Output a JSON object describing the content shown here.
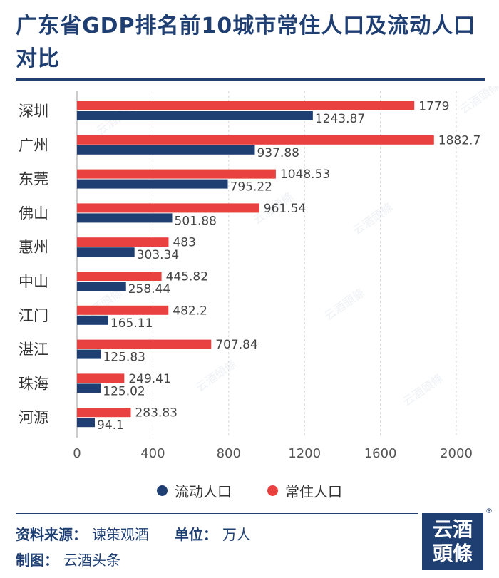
{
  "title": "广东省GDP排名前10城市常住人口及流动人口对比",
  "colors": {
    "resident": "#e8413f",
    "floating": "#1f3f73"
  },
  "legend": {
    "floating": "流动人口",
    "resident": "常住人口"
  },
  "footer": {
    "source_label": "资料来源：",
    "source_value": "谏策观酒",
    "unit_label": "单位：",
    "unit_value": "万人",
    "made_label": "制图：",
    "made_value": "云酒头条"
  },
  "logo": {
    "line1": "云酒",
    "line2": "頭條",
    "reg": "®"
  },
  "watermark": "云酒頭條",
  "chart_data": {
    "type": "bar",
    "orientation": "horizontal",
    "title": "广东省GDP排名前10城市常住人口及流动人口对比",
    "categories": [
      "深圳",
      "广州",
      "东莞",
      "佛山",
      "惠州",
      "中山",
      "江门",
      "湛江",
      "珠海",
      "河源"
    ],
    "series": [
      {
        "name": "常住人口",
        "labels": [
          "1779",
          "1882.7",
          "1048.53",
          "961.54",
          "483",
          "445.82",
          "482.2",
          "707.84",
          "249.41",
          "283.83"
        ],
        "values": [
          1779,
          1882.7,
          1048.53,
          961.54,
          483,
          445.82,
          482.2,
          707.84,
          249.41,
          283.83
        ]
      },
      {
        "name": "流动人口",
        "labels": [
          "1243.87",
          "937.88",
          "795.22",
          "501.88",
          "303.34",
          "258.44",
          "165.11",
          "125.83",
          "125.02",
          "94.1"
        ],
        "values": [
          1243.87,
          937.88,
          795.22,
          501.88,
          303.34,
          258.44,
          165.11,
          125.83,
          125.02,
          94.1
        ]
      }
    ],
    "xlim": [
      0,
      2000
    ],
    "xticks": [
      "0",
      "400",
      "800",
      "1200",
      "1600",
      "2000"
    ],
    "xlabel": "",
    "ylabel": "",
    "grid": true,
    "unit": "万人"
  }
}
